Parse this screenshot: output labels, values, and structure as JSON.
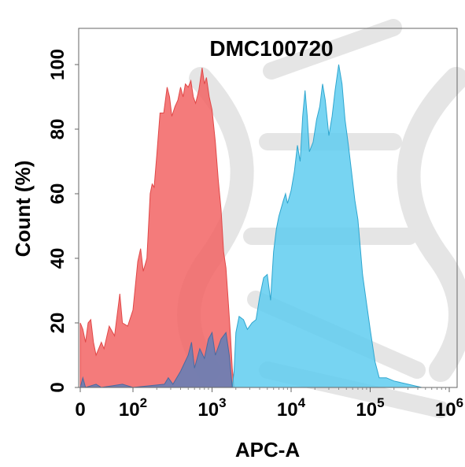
{
  "chart_data": {
    "type": "area",
    "title": "DMC100720",
    "xlabel": "APC-A",
    "ylabel": "Count  (%)",
    "x_scale": "biexponential",
    "xlim": [
      0,
      1000000
    ],
    "ylim": [
      0,
      100
    ],
    "x_ticks": [
      {
        "value": 0,
        "base": "0",
        "exp": ""
      },
      {
        "value": 100,
        "base": "10",
        "exp": "2"
      },
      {
        "value": 1000,
        "base": "10",
        "exp": "3"
      },
      {
        "value": 10000,
        "base": "10",
        "exp": "4"
      },
      {
        "value": 100000,
        "base": "10",
        "exp": "5"
      },
      {
        "value": 1000000,
        "base": "10",
        "exp": "6"
      }
    ],
    "y_ticks": [
      "0",
      "20",
      "40",
      "60",
      "80",
      "100"
    ],
    "y_tick_values": [
      0,
      20,
      40,
      60,
      80,
      100
    ],
    "grid": false,
    "legend": "none",
    "series": [
      {
        "color": "#f26464",
        "points": [
          [
            0,
            20
          ],
          [
            5,
            18
          ],
          [
            10,
            14
          ],
          [
            15,
            20
          ],
          [
            20,
            21
          ],
          [
            25,
            14
          ],
          [
            30,
            10
          ],
          [
            40,
            14
          ],
          [
            45,
            12
          ],
          [
            55,
            19
          ],
          [
            65,
            16
          ],
          [
            75,
            29
          ],
          [
            80,
            20
          ],
          [
            90,
            19
          ],
          [
            100,
            24
          ],
          [
            115,
            39
          ],
          [
            125,
            43
          ],
          [
            135,
            36
          ],
          [
            150,
            40
          ],
          [
            165,
            60
          ],
          [
            175,
            63
          ],
          [
            185,
            62
          ],
          [
            200,
            72
          ],
          [
            220,
            85
          ],
          [
            245,
            85
          ],
          [
            270,
            93
          ],
          [
            290,
            90
          ],
          [
            310,
            84
          ],
          [
            340,
            87
          ],
          [
            370,
            89
          ],
          [
            400,
            93
          ],
          [
            430,
            90
          ],
          [
            460,
            94
          ],
          [
            500,
            93
          ],
          [
            540,
            95
          ],
          [
            580,
            90
          ],
          [
            620,
            88
          ],
          [
            680,
            92
          ],
          [
            750,
            99
          ],
          [
            800,
            94
          ],
          [
            850,
            96
          ],
          [
            920,
            90
          ],
          [
            1000,
            86
          ],
          [
            1100,
            76
          ],
          [
            1200,
            64
          ],
          [
            1300,
            55
          ],
          [
            1400,
            42
          ],
          [
            1500,
            37
          ],
          [
            1600,
            27
          ],
          [
            1700,
            17
          ],
          [
            1800,
            6
          ],
          [
            1900,
            0
          ]
        ]
      },
      {
        "color": "#5fcdf0",
        "points": [
          [
            1800,
            0
          ],
          [
            1900,
            5
          ],
          [
            2000,
            17
          ],
          [
            2200,
            22
          ],
          [
            2500,
            21
          ],
          [
            2800,
            18
          ],
          [
            3200,
            20
          ],
          [
            3600,
            21
          ],
          [
            4000,
            28
          ],
          [
            4500,
            34
          ],
          [
            5000,
            35
          ],
          [
            5500,
            27
          ],
          [
            6000,
            42
          ],
          [
            6500,
            49
          ],
          [
            7000,
            53
          ],
          [
            8000,
            58
          ],
          [
            8500,
            60
          ],
          [
            9000,
            57
          ],
          [
            10000,
            61
          ],
          [
            11000,
            67
          ],
          [
            12000,
            75
          ],
          [
            13000,
            70
          ],
          [
            14000,
            84
          ],
          [
            15000,
            92
          ],
          [
            16000,
            84
          ],
          [
            17000,
            73
          ],
          [
            19000,
            76
          ],
          [
            21000,
            83
          ],
          [
            23000,
            87
          ],
          [
            25000,
            94
          ],
          [
            27000,
            89
          ],
          [
            30000,
            78
          ],
          [
            33000,
            84
          ],
          [
            36000,
            92
          ],
          [
            40000,
            100
          ],
          [
            44000,
            94
          ],
          [
            48000,
            83
          ],
          [
            53000,
            75
          ],
          [
            58000,
            67
          ],
          [
            64000,
            58
          ],
          [
            70000,
            52
          ],
          [
            80000,
            35
          ],
          [
            90000,
            26
          ],
          [
            100000,
            18
          ],
          [
            115000,
            8
          ],
          [
            130000,
            3
          ],
          [
            160000,
            3
          ],
          [
            200000,
            2
          ],
          [
            300000,
            1
          ],
          [
            450000,
            0
          ]
        ]
      },
      {
        "color": "#5f7fb8",
        "overlap": true,
        "points": [
          [
            0,
            0
          ],
          [
            5,
            3
          ],
          [
            10,
            0
          ],
          [
            30,
            1
          ],
          [
            40,
            0
          ],
          [
            80,
            1
          ],
          [
            100,
            0
          ],
          [
            250,
            1
          ],
          [
            280,
            3
          ],
          [
            320,
            1
          ],
          [
            400,
            5
          ],
          [
            500,
            10
          ],
          [
            550,
            14
          ],
          [
            600,
            6
          ],
          [
            700,
            12
          ],
          [
            800,
            9
          ],
          [
            900,
            15
          ],
          [
            1000,
            17
          ],
          [
            1100,
            10
          ],
          [
            1300,
            15
          ],
          [
            1500,
            17
          ],
          [
            1650,
            10
          ],
          [
            1800,
            0
          ]
        ]
      }
    ]
  }
}
